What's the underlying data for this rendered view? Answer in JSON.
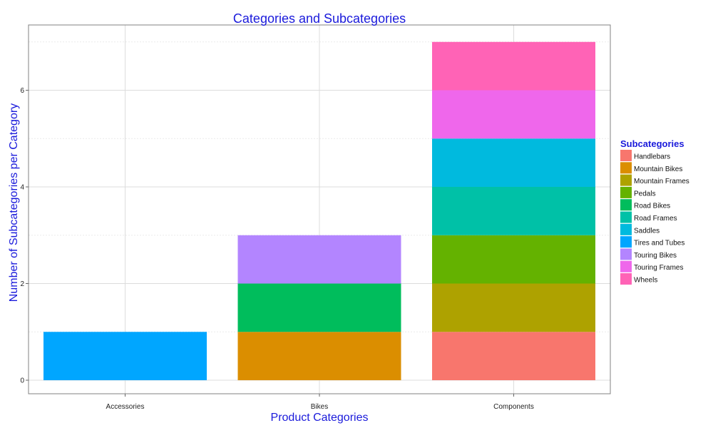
{
  "chart_data": {
    "type": "bar",
    "stacked": true,
    "title": "Categories and Subcategories",
    "xlabel": "Product Categories",
    "ylabel": "Number of Subcategories per Category",
    "ylim": [
      0,
      7.4
    ],
    "yticks": [
      0,
      2,
      4,
      6
    ],
    "grid": true,
    "legend_position": "right",
    "categories": [
      "Accessories",
      "Bikes",
      "Components"
    ],
    "legend_title": "Subcategories",
    "series": [
      {
        "name": "Handlebars",
        "color": "#F8766D",
        "values": [
          0,
          0,
          1
        ]
      },
      {
        "name": "Mountain Bikes",
        "color": "#DB8E00",
        "values": [
          0,
          1,
          0
        ]
      },
      {
        "name": "Mountain Frames",
        "color": "#AEA200",
        "values": [
          0,
          0,
          1
        ]
      },
      {
        "name": "Pedals",
        "color": "#64B200",
        "values": [
          0,
          0,
          1
        ]
      },
      {
        "name": "Road Bikes",
        "color": "#00BD5C",
        "values": [
          0,
          1,
          0
        ]
      },
      {
        "name": "Road Frames",
        "color": "#00C1A7",
        "values": [
          0,
          0,
          1
        ]
      },
      {
        "name": "Saddles",
        "color": "#00BADE",
        "values": [
          0,
          0,
          1
        ]
      },
      {
        "name": "Tires and Tubes",
        "color": "#00A6FF",
        "values": [
          1,
          0,
          0
        ]
      },
      {
        "name": "Touring Bikes",
        "color": "#B385FF",
        "values": [
          0,
          1,
          0
        ]
      },
      {
        "name": "Touring Frames",
        "color": "#EF67EB",
        "values": [
          0,
          0,
          1
        ]
      },
      {
        "name": "Wheels",
        "color": "#FF63B6",
        "values": [
          0,
          0,
          1
        ]
      }
    ]
  }
}
